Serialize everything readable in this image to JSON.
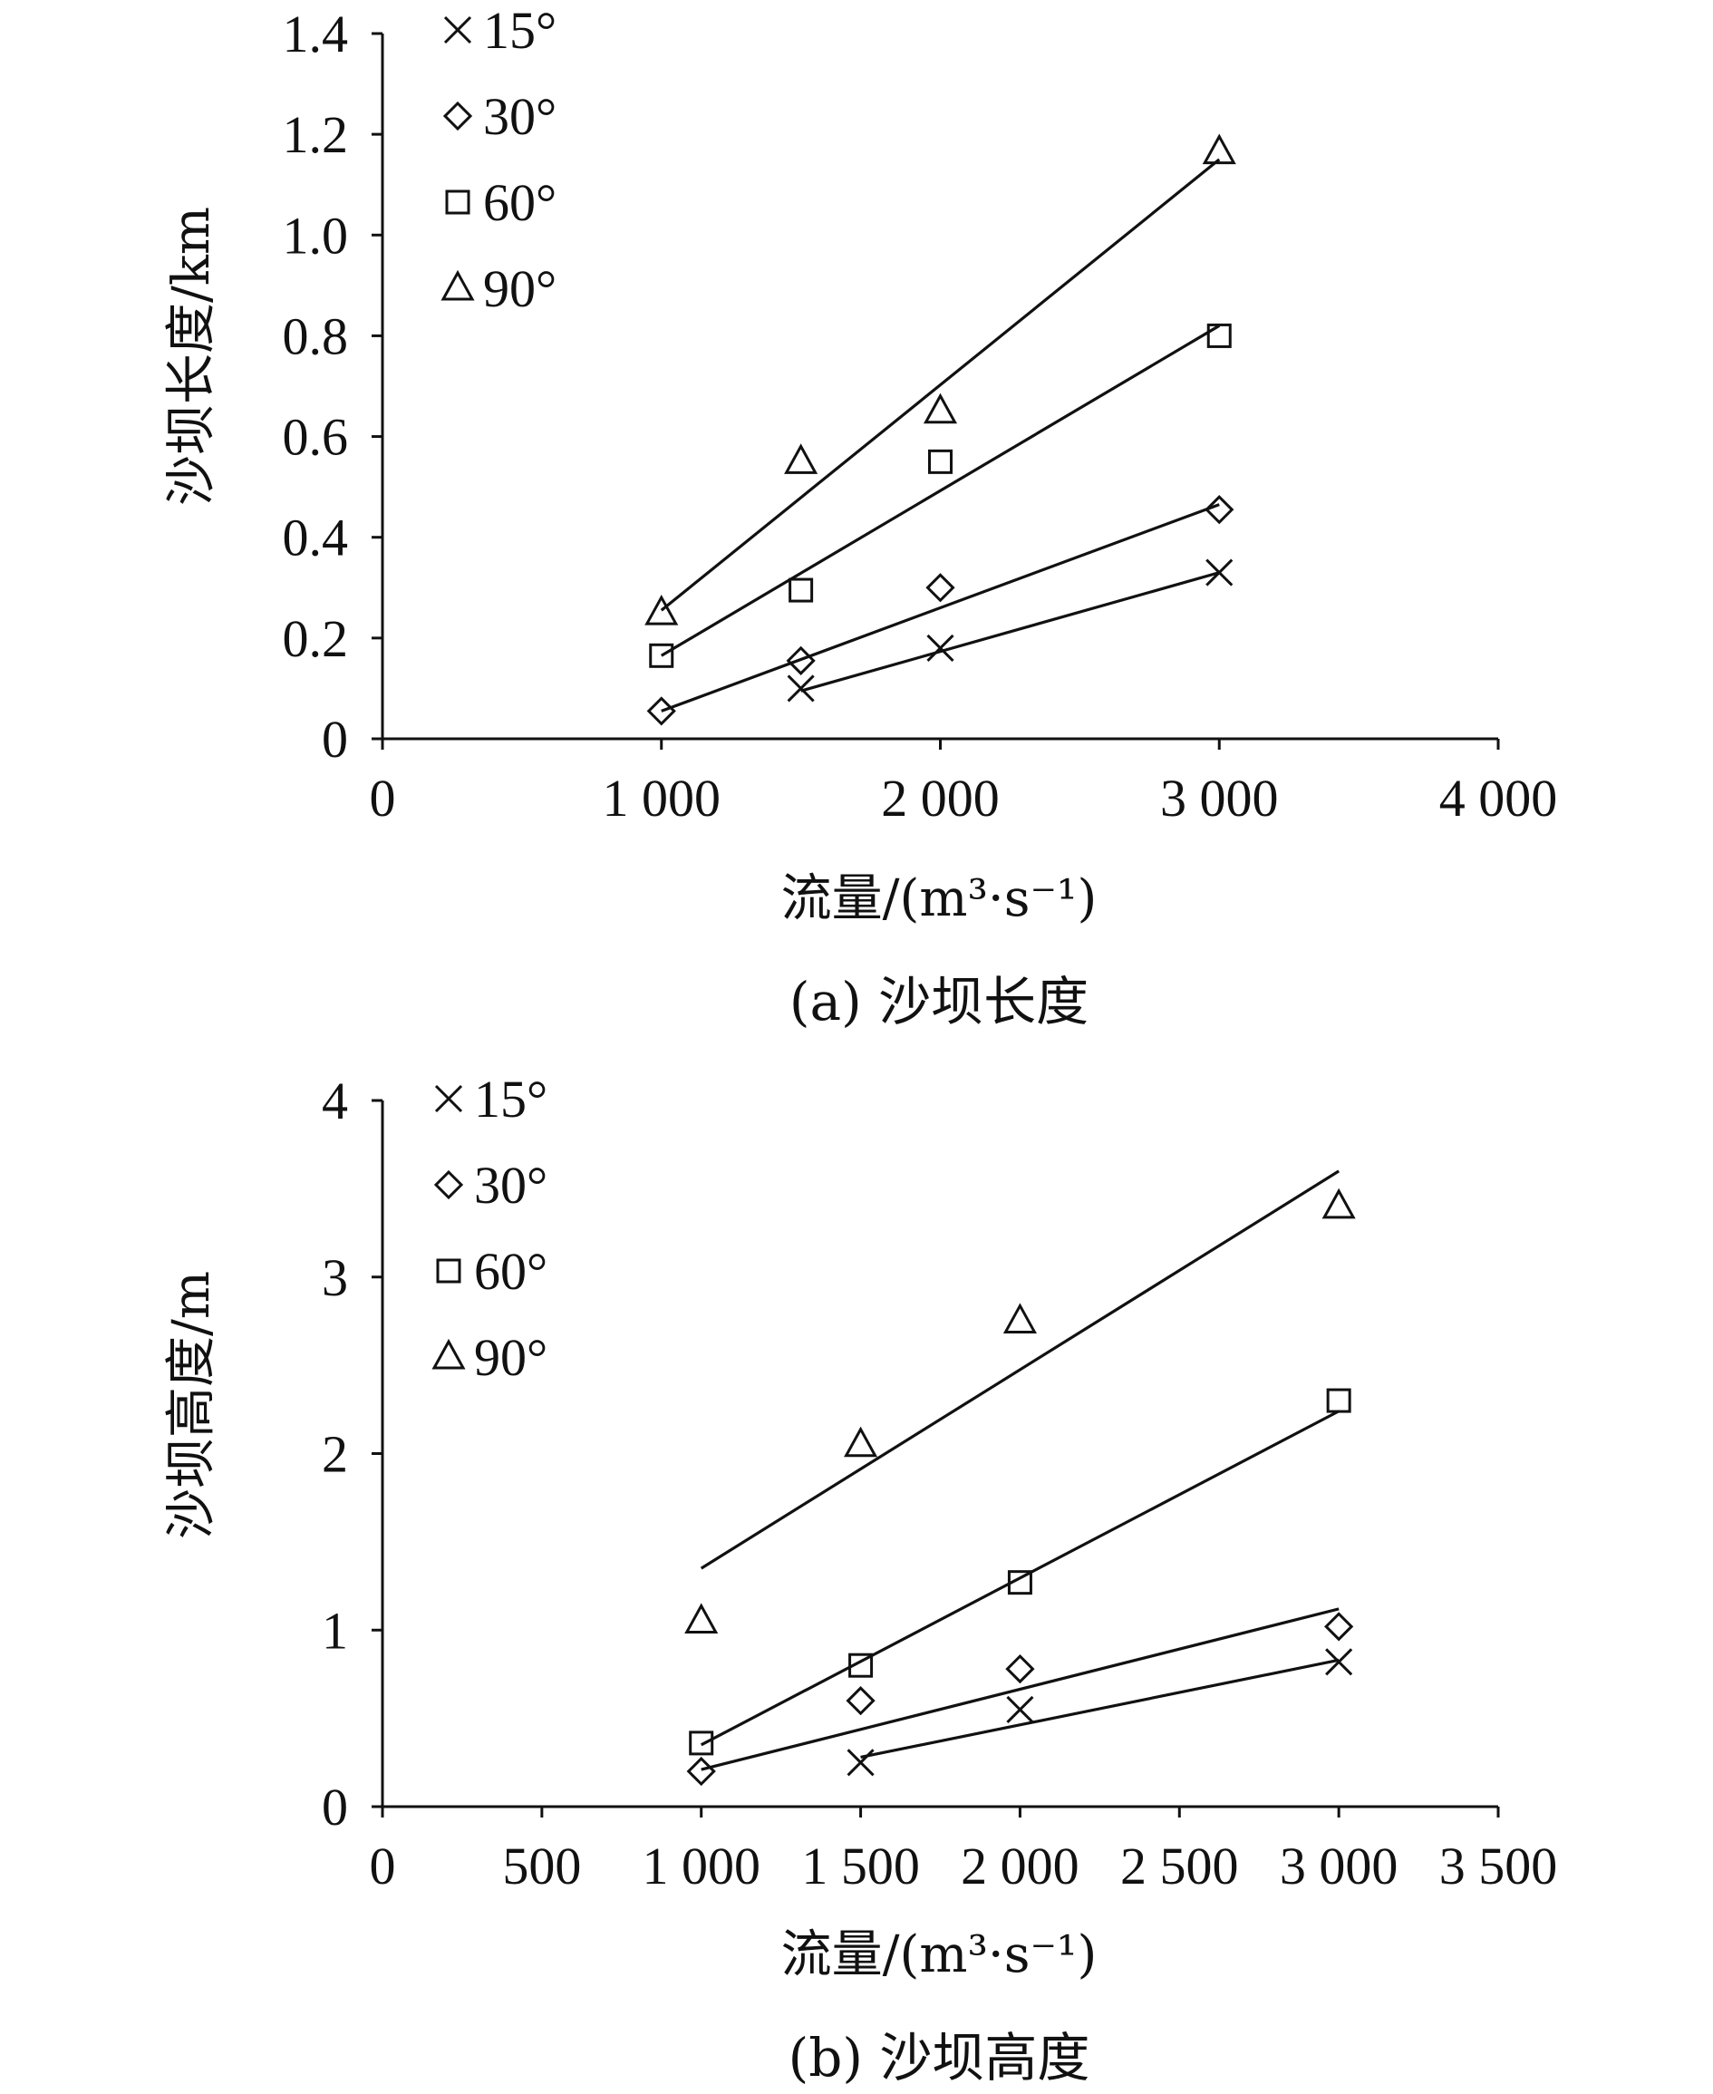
{
  "colors": {
    "ink": "#111111",
    "background": "#ffffff"
  },
  "chart_data": [
    {
      "panel": "a",
      "type": "scatter",
      "caption": "(a) 沙坝长度",
      "xlabel": "流量/(m³·s⁻¹)",
      "ylabel": "沙坝长度/km",
      "xlim": [
        0,
        4000
      ],
      "ylim": [
        0,
        1.4
      ],
      "xticks": [
        0,
        1000,
        2000,
        3000,
        4000
      ],
      "xtick_labels": [
        "0",
        "1 000",
        "2 000",
        "3 000",
        "4 000"
      ],
      "yticks": [
        0,
        0.2,
        0.4,
        0.6,
        0.8,
        1.0,
        1.2,
        1.4
      ],
      "ytick_labels": [
        "0",
        "0.2",
        "0.4",
        "0.6",
        "0.8",
        "1.0",
        "1.2",
        "1.4"
      ],
      "legend_position": "top-left",
      "grid": false,
      "series": [
        {
          "name": "15°",
          "marker": "cross",
          "x": [
            1500,
            2000,
            3000
          ],
          "y": [
            0.1,
            0.18,
            0.33
          ],
          "fit": [
            [
              1500,
              0.095
            ],
            [
              3000,
              0.33
            ]
          ]
        },
        {
          "name": "30°",
          "marker": "diamond",
          "x": [
            1000,
            1500,
            2000,
            3000
          ],
          "y": [
            0.055,
            0.155,
            0.3,
            0.455
          ],
          "fit": [
            [
              1000,
              0.055
            ],
            [
              3000,
              0.465
            ]
          ]
        },
        {
          "name": "60°",
          "marker": "square",
          "x": [
            1000,
            1500,
            2000,
            3000
          ],
          "y": [
            0.165,
            0.295,
            0.55,
            0.8
          ],
          "fit": [
            [
              1000,
              0.165
            ],
            [
              3000,
              0.82
            ]
          ]
        },
        {
          "name": "90°",
          "marker": "triangle",
          "x": [
            1000,
            1500,
            2000,
            3000
          ],
          "y": [
            0.25,
            0.55,
            0.65,
            1.165
          ],
          "fit": [
            [
              1000,
              0.255
            ],
            [
              3000,
              1.15
            ]
          ]
        }
      ]
    },
    {
      "panel": "b",
      "type": "scatter",
      "caption": "(b) 沙坝高度",
      "xlabel": "流量/(m³·s⁻¹)",
      "ylabel": "沙坝高度/m",
      "xlim": [
        0,
        3500
      ],
      "ylim": [
        0,
        4
      ],
      "xticks": [
        0,
        500,
        1000,
        1500,
        2000,
        2500,
        3000,
        3500
      ],
      "xtick_labels": [
        "0",
        "500",
        "1 000",
        "1 500",
        "2 000",
        "2 500",
        "3 000",
        "3 500"
      ],
      "yticks": [
        0,
        1,
        2,
        3,
        4
      ],
      "ytick_labels": [
        "0",
        "1",
        "2",
        "3",
        "4"
      ],
      "legend_position": "top-left",
      "grid": false,
      "series": [
        {
          "name": "15°",
          "marker": "cross",
          "x": [
            1500,
            2000,
            3000
          ],
          "y": [
            0.25,
            0.55,
            0.82
          ],
          "fit": [
            [
              1500,
              0.28
            ],
            [
              3000,
              0.83
            ]
          ]
        },
        {
          "name": "30°",
          "marker": "diamond",
          "x": [
            1000,
            1500,
            2000,
            3000
          ],
          "y": [
            0.2,
            0.6,
            0.78,
            1.02
          ],
          "fit": [
            [
              1000,
              0.21
            ],
            [
              3000,
              1.12
            ]
          ]
        },
        {
          "name": "60°",
          "marker": "square",
          "x": [
            1000,
            1500,
            2000,
            3000
          ],
          "y": [
            0.36,
            0.8,
            1.27,
            2.3
          ],
          "fit": [
            [
              1000,
              0.35
            ],
            [
              3000,
              2.24
            ]
          ]
        },
        {
          "name": "90°",
          "marker": "triangle",
          "x": [
            1000,
            1500,
            2000,
            3000
          ],
          "y": [
            1.05,
            2.05,
            2.75,
            3.4
          ],
          "fit": [
            [
              1000,
              1.35
            ],
            [
              3000,
              3.6
            ]
          ]
        }
      ]
    }
  ]
}
